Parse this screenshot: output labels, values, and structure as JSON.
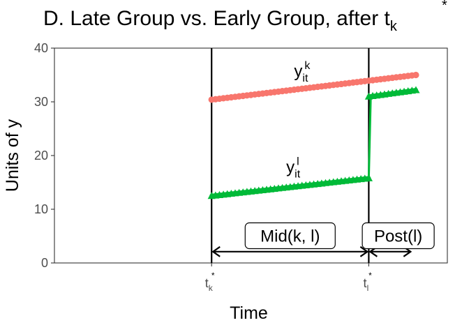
{
  "chart_data": {
    "type": "line",
    "title": {
      "main": "D. Late Group vs. Early Group, after t",
      "sub": "k",
      "sup": "*"
    },
    "xlabel": "Time",
    "ylabel": "Units of y",
    "ylim": [
      0,
      40
    ],
    "xlim": [
      0,
      100
    ],
    "grid": false,
    "y_ticks": [
      0,
      10,
      20,
      30,
      40
    ],
    "x_ticks": [
      {
        "x": 40,
        "base": "t",
        "sub": "k",
        "sup": "*"
      },
      {
        "x": 80,
        "base": "t",
        "sub": "l",
        "sup": "*"
      }
    ],
    "vlines": [
      40,
      80
    ],
    "series": [
      {
        "key": "k",
        "marker": "circle",
        "color": "#F8766D",
        "label_base": "y",
        "label_sub": "it",
        "label_sup": "k",
        "label_pos": [
          61,
          34.7
        ],
        "segments": [
          {
            "x": [
              40,
              92
            ],
            "y": [
              30.4,
              35.0
            ]
          }
        ]
      },
      {
        "key": "l",
        "marker": "triangle",
        "color": "#00BA38",
        "label_base": "y",
        "label_sub": "it",
        "label_sup": "l",
        "label_pos": [
          59,
          16.8
        ],
        "segments": [
          {
            "x": [
              40,
              80
            ],
            "y": [
              12.5,
              15.8
            ]
          },
          {
            "x": [
              80,
              92
            ],
            "y": [
              31.0,
              32.2
            ]
          }
        ],
        "jump": {
          "x": [
            80,
            80.5
          ],
          "y": [
            15.8,
            31.0
          ]
        }
      }
    ],
    "annotations": [
      {
        "label": "Mid(k, l)",
        "x_from": 40,
        "x_to": 80,
        "y": 2.1,
        "label_x": 60,
        "label_y": 5.0
      },
      {
        "label": "Post(l)",
        "x_from": 80,
        "x_to": 91,
        "y": 2.1,
        "label_x": 87.5,
        "label_y": 5.0
      }
    ]
  }
}
